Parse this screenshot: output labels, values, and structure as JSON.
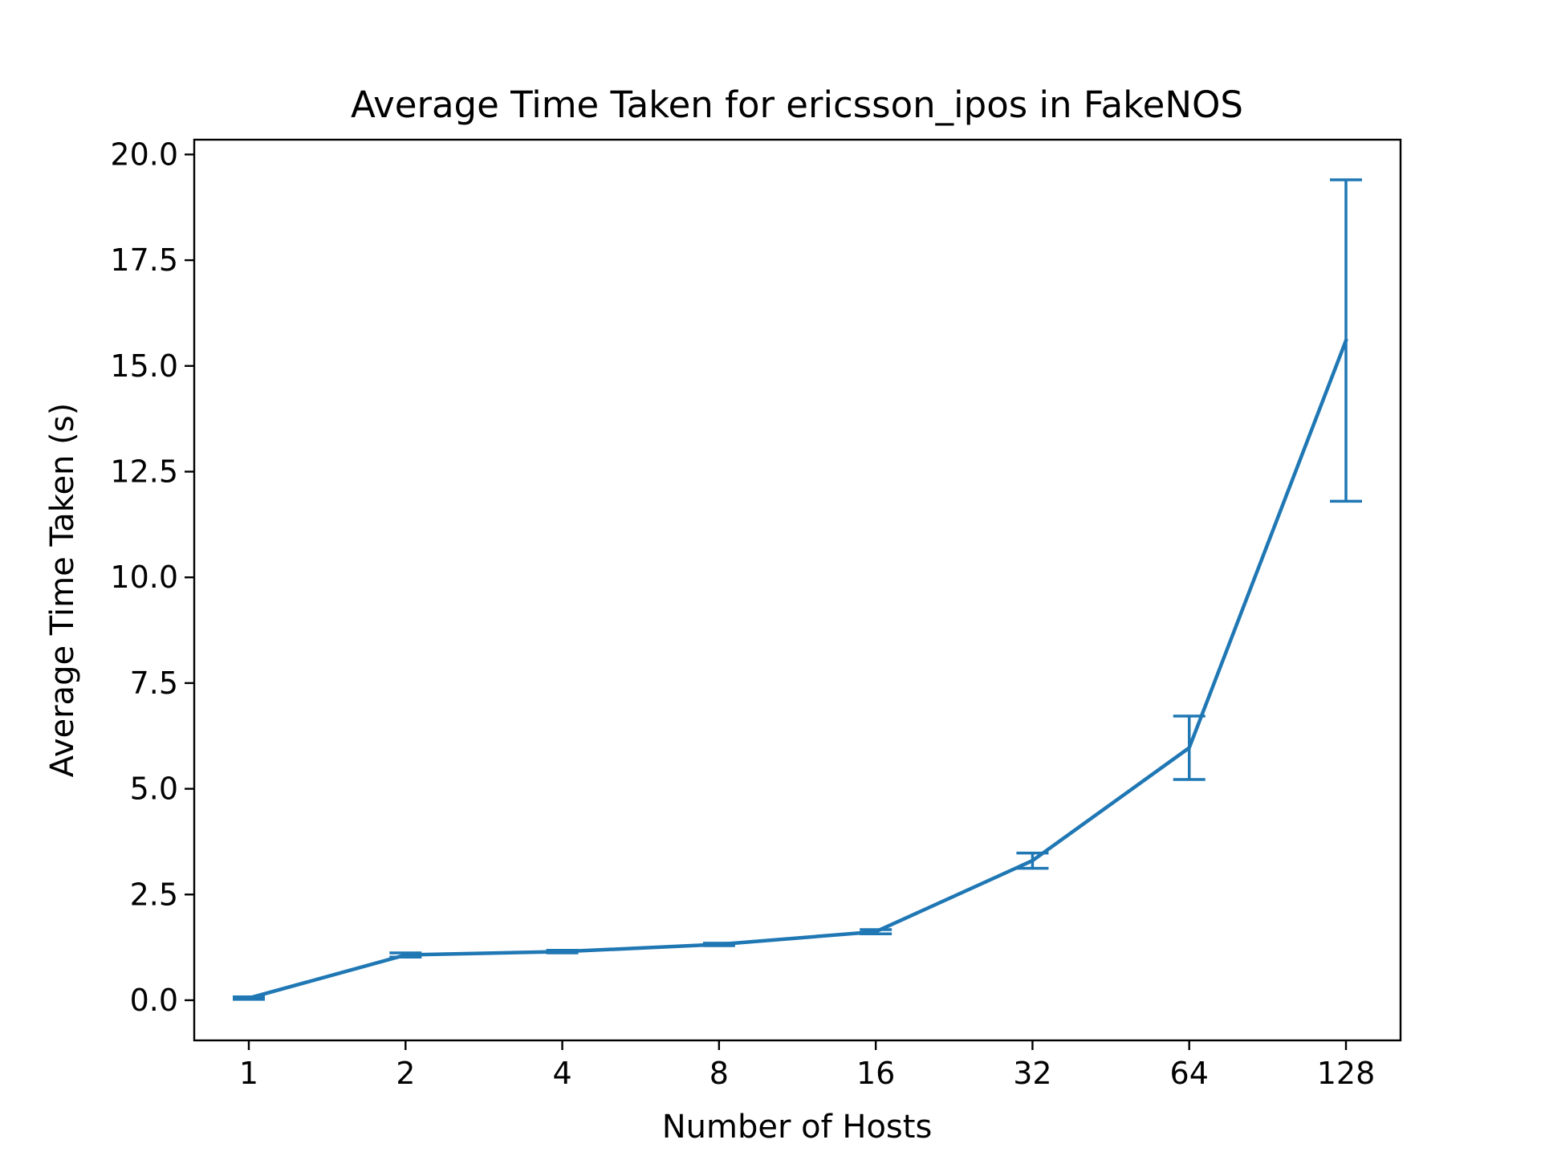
{
  "chart_data": {
    "type": "line",
    "title": "Average Time Taken for ericsson_ipos in FakeNOS",
    "xlabel": "Number of Hosts",
    "ylabel": "Average Time Taken (s)",
    "x_scale": "log2",
    "categories": [
      "1",
      "2",
      "4",
      "8",
      "16",
      "32",
      "64",
      "128"
    ],
    "x": [
      1,
      2,
      4,
      8,
      16,
      32,
      64,
      128
    ],
    "y_ticks": [
      "0.0",
      "2.5",
      "5.0",
      "7.5",
      "10.0",
      "12.5",
      "15.0",
      "17.5",
      "20.0"
    ],
    "ylim": [
      -0.95,
      20.35
    ],
    "grid": false,
    "series": [
      {
        "values": [
          0.05,
          1.07,
          1.15,
          1.32,
          1.62,
          3.3,
          5.97,
          15.6
        ],
        "error": [
          0.03,
          0.05,
          0.03,
          0.03,
          0.05,
          0.18,
          0.75,
          3.8
        ],
        "color": "#1f77b4"
      }
    ]
  }
}
